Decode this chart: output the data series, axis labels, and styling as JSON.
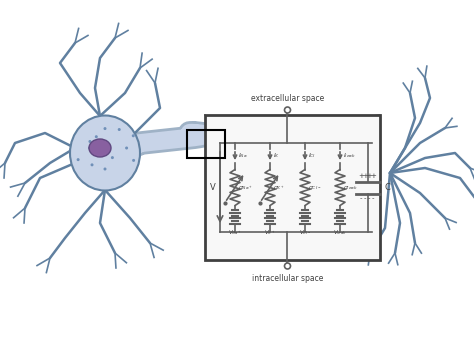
{
  "bg_color": "#ffffff",
  "neuron_soma_color": "#c8d4e8",
  "neuron_outline_color": "#6080a0",
  "nucleus_color": "#8860a0",
  "circuit_box_color": "#404040",
  "wire_color": "#606060",
  "text_color": "#404040",
  "extracellular_label": "extracellular space",
  "intracellular_label": "intracellular space",
  "capacitance_label": "C",
  "voltage_label": "V"
}
